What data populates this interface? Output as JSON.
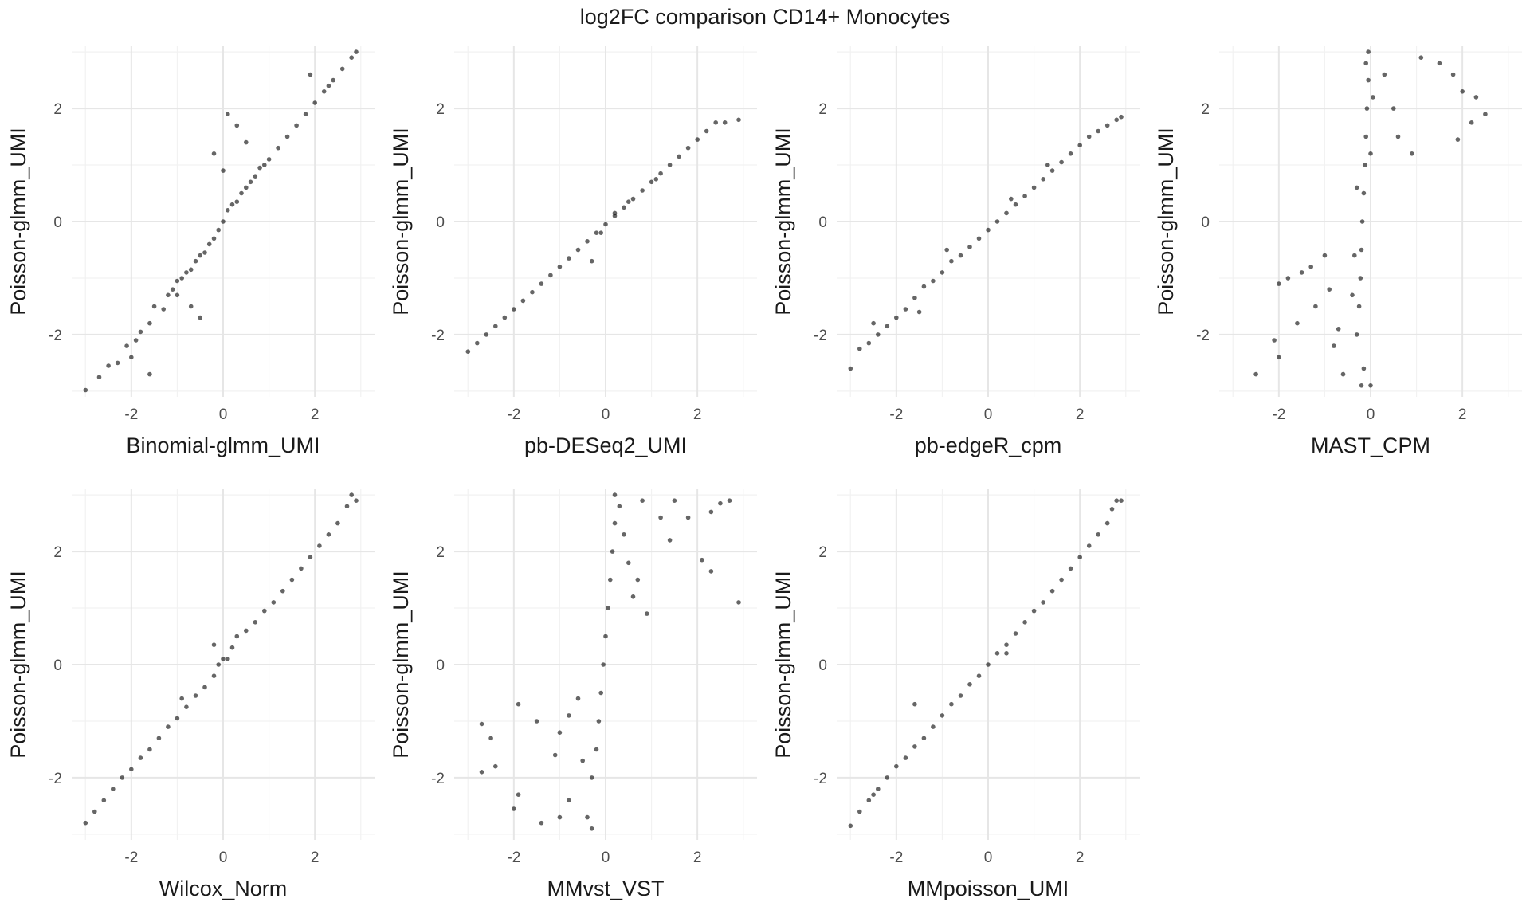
{
  "figure_title": "log2FC comparison CD14+ Monocytes",
  "colors": {
    "point": "#000000",
    "grid_major": "#e6e6e6",
    "grid_minor": "#f2f2f2",
    "text": "#1a1a1a",
    "tick_text": "#4d4d4d"
  },
  "chart_data": [
    {
      "type": "scatter",
      "xlabel": "Binomial-glmm_UMI",
      "ylabel": "Poisson-glmm_UMI",
      "xlim": [
        -3.3,
        3.3
      ],
      "ylim": [
        -3.1,
        3.1
      ],
      "xticks": [
        -2,
        0,
        2
      ],
      "yticks": [
        -2,
        0,
        2
      ],
      "grid": true,
      "points": [
        [
          -3.0,
          -2.98
        ],
        [
          -2.7,
          -2.75
        ],
        [
          -2.5,
          -2.55
        ],
        [
          -2.3,
          -2.5
        ],
        [
          -2.1,
          -2.2
        ],
        [
          -1.9,
          -2.1
        ],
        [
          -1.8,
          -1.95
        ],
        [
          -1.6,
          -1.8
        ],
        [
          -1.5,
          -1.5
        ],
        [
          -1.3,
          -1.55
        ],
        [
          -1.2,
          -1.3
        ],
        [
          -1.1,
          -1.2
        ],
        [
          -1.0,
          -1.05
        ],
        [
          -0.9,
          -1.0
        ],
        [
          -0.8,
          -0.9
        ],
        [
          -0.7,
          -0.85
        ],
        [
          -0.6,
          -0.7
        ],
        [
          -0.5,
          -0.6
        ],
        [
          -0.4,
          -0.55
        ],
        [
          -0.3,
          -0.4
        ],
        [
          -0.2,
          -0.3
        ],
        [
          -0.1,
          -0.15
        ],
        [
          0.0,
          0.0
        ],
        [
          0.1,
          0.2
        ],
        [
          0.2,
          0.3
        ],
        [
          0.3,
          0.35
        ],
        [
          0.4,
          0.5
        ],
        [
          0.5,
          0.6
        ],
        [
          0.6,
          0.7
        ],
        [
          0.7,
          0.8
        ],
        [
          0.8,
          0.95
        ],
        [
          0.9,
          1.0
        ],
        [
          1.0,
          1.1
        ],
        [
          1.2,
          1.3
        ],
        [
          1.4,
          1.5
        ],
        [
          1.6,
          1.7
        ],
        [
          1.8,
          1.9
        ],
        [
          2.0,
          2.1
        ],
        [
          2.2,
          2.3
        ],
        [
          2.4,
          2.5
        ],
        [
          2.6,
          2.7
        ],
        [
          2.8,
          2.9
        ],
        [
          2.9,
          3.0
        ],
        [
          0.1,
          1.9
        ],
        [
          0.3,
          1.7
        ],
        [
          -0.2,
          1.2
        ],
        [
          0.0,
          0.9
        ],
        [
          0.5,
          1.4
        ],
        [
          -0.7,
          -1.5
        ],
        [
          -0.5,
          -1.7
        ],
        [
          -1.0,
          -1.3
        ],
        [
          1.9,
          2.6
        ],
        [
          2.3,
          2.4
        ],
        [
          -2.0,
          -2.4
        ],
        [
          -1.6,
          -2.7
        ]
      ]
    },
    {
      "type": "scatter",
      "xlabel": "pb-DESeq2_UMI",
      "ylabel": "Poisson-glmm_UMI",
      "xlim": [
        -3.3,
        3.3
      ],
      "ylim": [
        -3.1,
        3.1
      ],
      "xticks": [
        -2,
        0,
        2
      ],
      "yticks": [
        -2,
        0,
        2
      ],
      "grid": true,
      "points": [
        [
          -3.0,
          -2.3
        ],
        [
          -2.8,
          -2.15
        ],
        [
          -2.6,
          -2.0
        ],
        [
          -2.4,
          -1.85
        ],
        [
          -2.2,
          -1.7
        ],
        [
          -2.0,
          -1.55
        ],
        [
          -1.8,
          -1.4
        ],
        [
          -1.6,
          -1.25
        ],
        [
          -1.4,
          -1.1
        ],
        [
          -1.2,
          -0.95
        ],
        [
          -1.0,
          -0.8
        ],
        [
          -0.8,
          -0.65
        ],
        [
          -0.6,
          -0.5
        ],
        [
          -0.4,
          -0.35
        ],
        [
          -0.2,
          -0.2
        ],
        [
          0.0,
          -0.05
        ],
        [
          0.2,
          0.1
        ],
        [
          0.4,
          0.25
        ],
        [
          0.6,
          0.4
        ],
        [
          0.8,
          0.55
        ],
        [
          1.0,
          0.7
        ],
        [
          1.2,
          0.85
        ],
        [
          1.4,
          1.0
        ],
        [
          1.6,
          1.15
        ],
        [
          1.8,
          1.3
        ],
        [
          2.0,
          1.45
        ],
        [
          2.2,
          1.6
        ],
        [
          2.4,
          1.75
        ],
        [
          2.6,
          1.75
        ],
        [
          2.9,
          1.8
        ],
        [
          0.2,
          0.15
        ],
        [
          -0.3,
          -0.7
        ],
        [
          -0.1,
          -0.2
        ],
        [
          0.5,
          0.35
        ],
        [
          1.1,
          0.75
        ]
      ]
    },
    {
      "type": "scatter",
      "xlabel": "pb-edgeR_cpm",
      "ylabel": "Poisson-glmm_UMI",
      "xlim": [
        -3.3,
        3.3
      ],
      "ylim": [
        -3.1,
        3.1
      ],
      "xticks": [
        -2,
        0,
        2
      ],
      "yticks": [
        -2,
        0,
        2
      ],
      "grid": true,
      "points": [
        [
          -3.0,
          -2.6
        ],
        [
          -2.8,
          -2.25
        ],
        [
          -2.6,
          -2.15
        ],
        [
          -2.4,
          -2.0
        ],
        [
          -2.2,
          -1.85
        ],
        [
          -2.0,
          -1.7
        ],
        [
          -1.8,
          -1.55
        ],
        [
          -1.6,
          -1.35
        ],
        [
          -1.4,
          -1.15
        ],
        [
          -1.2,
          -1.05
        ],
        [
          -1.0,
          -0.9
        ],
        [
          -0.8,
          -0.7
        ],
        [
          -0.6,
          -0.6
        ],
        [
          -0.4,
          -0.45
        ],
        [
          -0.2,
          -0.3
        ],
        [
          0.0,
          -0.15
        ],
        [
          0.2,
          0.0
        ],
        [
          0.4,
          0.15
        ],
        [
          0.6,
          0.3
        ],
        [
          0.8,
          0.45
        ],
        [
          1.0,
          0.6
        ],
        [
          1.2,
          0.75
        ],
        [
          1.4,
          0.9
        ],
        [
          1.6,
          1.05
        ],
        [
          1.8,
          1.2
        ],
        [
          2.0,
          1.35
        ],
        [
          2.2,
          1.5
        ],
        [
          2.4,
          1.6
        ],
        [
          2.6,
          1.7
        ],
        [
          2.8,
          1.8
        ],
        [
          2.9,
          1.85
        ],
        [
          -1.5,
          -1.6
        ],
        [
          -0.9,
          -0.5
        ],
        [
          0.5,
          0.4
        ],
        [
          1.3,
          1.0
        ],
        [
          -2.5,
          -1.8
        ]
      ]
    },
    {
      "type": "scatter",
      "xlabel": "MAST_CPM",
      "ylabel": "Poisson-glmm_UMI",
      "xlim": [
        -3.3,
        3.3
      ],
      "ylim": [
        -3.1,
        3.1
      ],
      "xticks": [
        -2,
        0,
        2
      ],
      "yticks": [
        -2,
        0,
        2
      ],
      "grid": true,
      "points": [
        [
          -0.05,
          3.0
        ],
        [
          -0.05,
          2.5
        ],
        [
          -0.08,
          2.0
        ],
        [
          -0.1,
          1.5
        ],
        [
          -0.12,
          1.0
        ],
        [
          -0.15,
          0.5
        ],
        [
          -0.18,
          0.0
        ],
        [
          -0.2,
          -0.5
        ],
        [
          -0.22,
          -1.0
        ],
        [
          -0.25,
          -1.5
        ],
        [
          -0.3,
          -2.0
        ],
        [
          -0.1,
          2.8
        ],
        [
          0.05,
          2.2
        ],
        [
          0.0,
          1.2
        ],
        [
          -0.3,
          0.6
        ],
        [
          -0.35,
          -0.6
        ],
        [
          -0.4,
          -1.3
        ],
        [
          -0.15,
          -2.6
        ],
        [
          -0.2,
          -2.9
        ],
        [
          0.0,
          -2.9
        ],
        [
          0.3,
          2.6
        ],
        [
          0.5,
          2.0
        ],
        [
          0.6,
          1.5
        ],
        [
          0.9,
          1.2
        ],
        [
          1.1,
          2.9
        ],
        [
          1.5,
          2.8
        ],
        [
          1.8,
          2.6
        ],
        [
          2.0,
          2.3
        ],
        [
          2.3,
          2.2
        ],
        [
          2.5,
          1.9
        ],
        [
          2.2,
          1.75
        ],
        [
          1.9,
          1.45
        ],
        [
          -1.0,
          -0.6
        ],
        [
          -1.3,
          -0.8
        ],
        [
          -1.5,
          -0.9
        ],
        [
          -1.8,
          -1.0
        ],
        [
          -2.0,
          -1.1
        ],
        [
          -1.2,
          -1.5
        ],
        [
          -0.9,
          -1.2
        ],
        [
          -0.7,
          -1.9
        ],
        [
          -0.8,
          -2.2
        ],
        [
          -1.6,
          -1.8
        ],
        [
          -2.1,
          -2.1
        ],
        [
          -2.5,
          -2.7
        ],
        [
          -2.0,
          -2.4
        ],
        [
          -0.6,
          -2.7
        ]
      ]
    },
    {
      "type": "scatter",
      "xlabel": "Wilcox_Norm",
      "ylabel": "Poisson-glmm_UMI",
      "xlim": [
        -3.3,
        3.3
      ],
      "ylim": [
        -3.1,
        3.1
      ],
      "xticks": [
        -2,
        0,
        2
      ],
      "yticks": [
        -2,
        0,
        2
      ],
      "grid": true,
      "points": [
        [
          -3.0,
          -2.8
        ],
        [
          -2.8,
          -2.6
        ],
        [
          -2.6,
          -2.4
        ],
        [
          -2.4,
          -2.2
        ],
        [
          -2.2,
          -2.0
        ],
        [
          -2.0,
          -1.85
        ],
        [
          -1.8,
          -1.65
        ],
        [
          -1.6,
          -1.5
        ],
        [
          -1.4,
          -1.3
        ],
        [
          -1.2,
          -1.1
        ],
        [
          -1.0,
          -0.95
        ],
        [
          -0.8,
          -0.75
        ],
        [
          -0.6,
          -0.55
        ],
        [
          -0.4,
          -0.4
        ],
        [
          -0.2,
          -0.2
        ],
        [
          -0.1,
          0.0
        ],
        [
          0.0,
          0.1
        ],
        [
          0.1,
          0.1
        ],
        [
          0.2,
          0.3
        ],
        [
          0.3,
          0.5
        ],
        [
          0.5,
          0.6
        ],
        [
          0.7,
          0.75
        ],
        [
          0.9,
          0.95
        ],
        [
          1.1,
          1.1
        ],
        [
          1.3,
          1.3
        ],
        [
          1.5,
          1.5
        ],
        [
          1.7,
          1.7
        ],
        [
          1.9,
          1.9
        ],
        [
          2.1,
          2.1
        ],
        [
          2.3,
          2.3
        ],
        [
          2.5,
          2.5
        ],
        [
          2.7,
          2.8
        ],
        [
          2.8,
          3.0
        ],
        [
          2.9,
          2.9
        ],
        [
          -0.2,
          0.35
        ],
        [
          -0.9,
          -0.6
        ]
      ]
    },
    {
      "type": "scatter",
      "xlabel": "MMvst_VST",
      "ylabel": "Poisson-glmm_UMI",
      "xlim": [
        -3.3,
        3.3
      ],
      "ylim": [
        -3.1,
        3.1
      ],
      "xticks": [
        -2,
        0,
        2
      ],
      "yticks": [
        -2,
        0,
        2
      ],
      "grid": true,
      "points": [
        [
          0.2,
          3.0
        ],
        [
          0.3,
          2.8
        ],
        [
          0.2,
          2.5
        ],
        [
          0.15,
          2.0
        ],
        [
          0.1,
          1.5
        ],
        [
          0.05,
          1.0
        ],
        [
          0.0,
          0.5
        ],
        [
          -0.05,
          0.0
        ],
        [
          -0.1,
          -0.5
        ],
        [
          -0.15,
          -1.0
        ],
        [
          -0.2,
          -1.5
        ],
        [
          -0.3,
          -2.0
        ],
        [
          0.4,
          2.3
        ],
        [
          0.5,
          1.8
        ],
        [
          0.6,
          1.2
        ],
        [
          0.8,
          2.9
        ],
        [
          1.2,
          2.6
        ],
        [
          1.5,
          2.9
        ],
        [
          1.8,
          2.6
        ],
        [
          2.3,
          2.7
        ],
        [
          2.5,
          2.85
        ],
        [
          2.7,
          2.9
        ],
        [
          2.9,
          1.1
        ],
        [
          2.3,
          1.65
        ],
        [
          2.1,
          1.85
        ],
        [
          1.4,
          2.2
        ],
        [
          0.7,
          1.5
        ],
        [
          0.9,
          0.9
        ],
        [
          -0.6,
          -0.6
        ],
        [
          -0.8,
          -0.9
        ],
        [
          -1.0,
          -1.2
        ],
        [
          -1.5,
          -1.0
        ],
        [
          -1.9,
          -0.7
        ],
        [
          -2.7,
          -1.05
        ],
        [
          -2.5,
          -1.3
        ],
        [
          -2.4,
          -1.8
        ],
        [
          -2.7,
          -1.9
        ],
        [
          -1.9,
          -2.3
        ],
        [
          -2.0,
          -2.55
        ],
        [
          -1.4,
          -2.8
        ],
        [
          -1.0,
          -2.7
        ],
        [
          -0.8,
          -2.4
        ],
        [
          -0.4,
          -2.7
        ],
        [
          -0.3,
          -2.9
        ],
        [
          -0.5,
          -1.7
        ],
        [
          -1.1,
          -1.6
        ]
      ]
    },
    {
      "type": "scatter",
      "xlabel": "MMpoisson_UMI",
      "ylabel": "Poisson-glmm_UMI",
      "xlim": [
        -3.3,
        3.3
      ],
      "ylim": [
        -3.1,
        3.1
      ],
      "xticks": [
        -2,
        0,
        2
      ],
      "yticks": [
        -2,
        0,
        2
      ],
      "grid": true,
      "points": [
        [
          -3.0,
          -2.85
        ],
        [
          -2.8,
          -2.6
        ],
        [
          -2.6,
          -2.4
        ],
        [
          -2.4,
          -2.2
        ],
        [
          -2.2,
          -2.0
        ],
        [
          -2.0,
          -1.8
        ],
        [
          -1.8,
          -1.65
        ],
        [
          -1.6,
          -1.45
        ],
        [
          -1.4,
          -1.3
        ],
        [
          -1.2,
          -1.1
        ],
        [
          -1.0,
          -0.9
        ],
        [
          -0.8,
          -0.7
        ],
        [
          -0.6,
          -0.55
        ],
        [
          -0.4,
          -0.35
        ],
        [
          -0.2,
          -0.2
        ],
        [
          0.0,
          0.0
        ],
        [
          0.2,
          0.2
        ],
        [
          0.4,
          0.35
        ],
        [
          0.6,
          0.55
        ],
        [
          0.8,
          0.75
        ],
        [
          1.0,
          0.95
        ],
        [
          1.2,
          1.1
        ],
        [
          1.4,
          1.3
        ],
        [
          1.6,
          1.5
        ],
        [
          1.8,
          1.7
        ],
        [
          2.0,
          1.9
        ],
        [
          2.2,
          2.1
        ],
        [
          2.4,
          2.3
        ],
        [
          2.6,
          2.5
        ],
        [
          2.7,
          2.75
        ],
        [
          2.8,
          2.9
        ],
        [
          2.9,
          2.9
        ],
        [
          -1.6,
          -0.7
        ],
        [
          0.4,
          0.2
        ],
        [
          -2.5,
          -2.3
        ]
      ]
    }
  ]
}
